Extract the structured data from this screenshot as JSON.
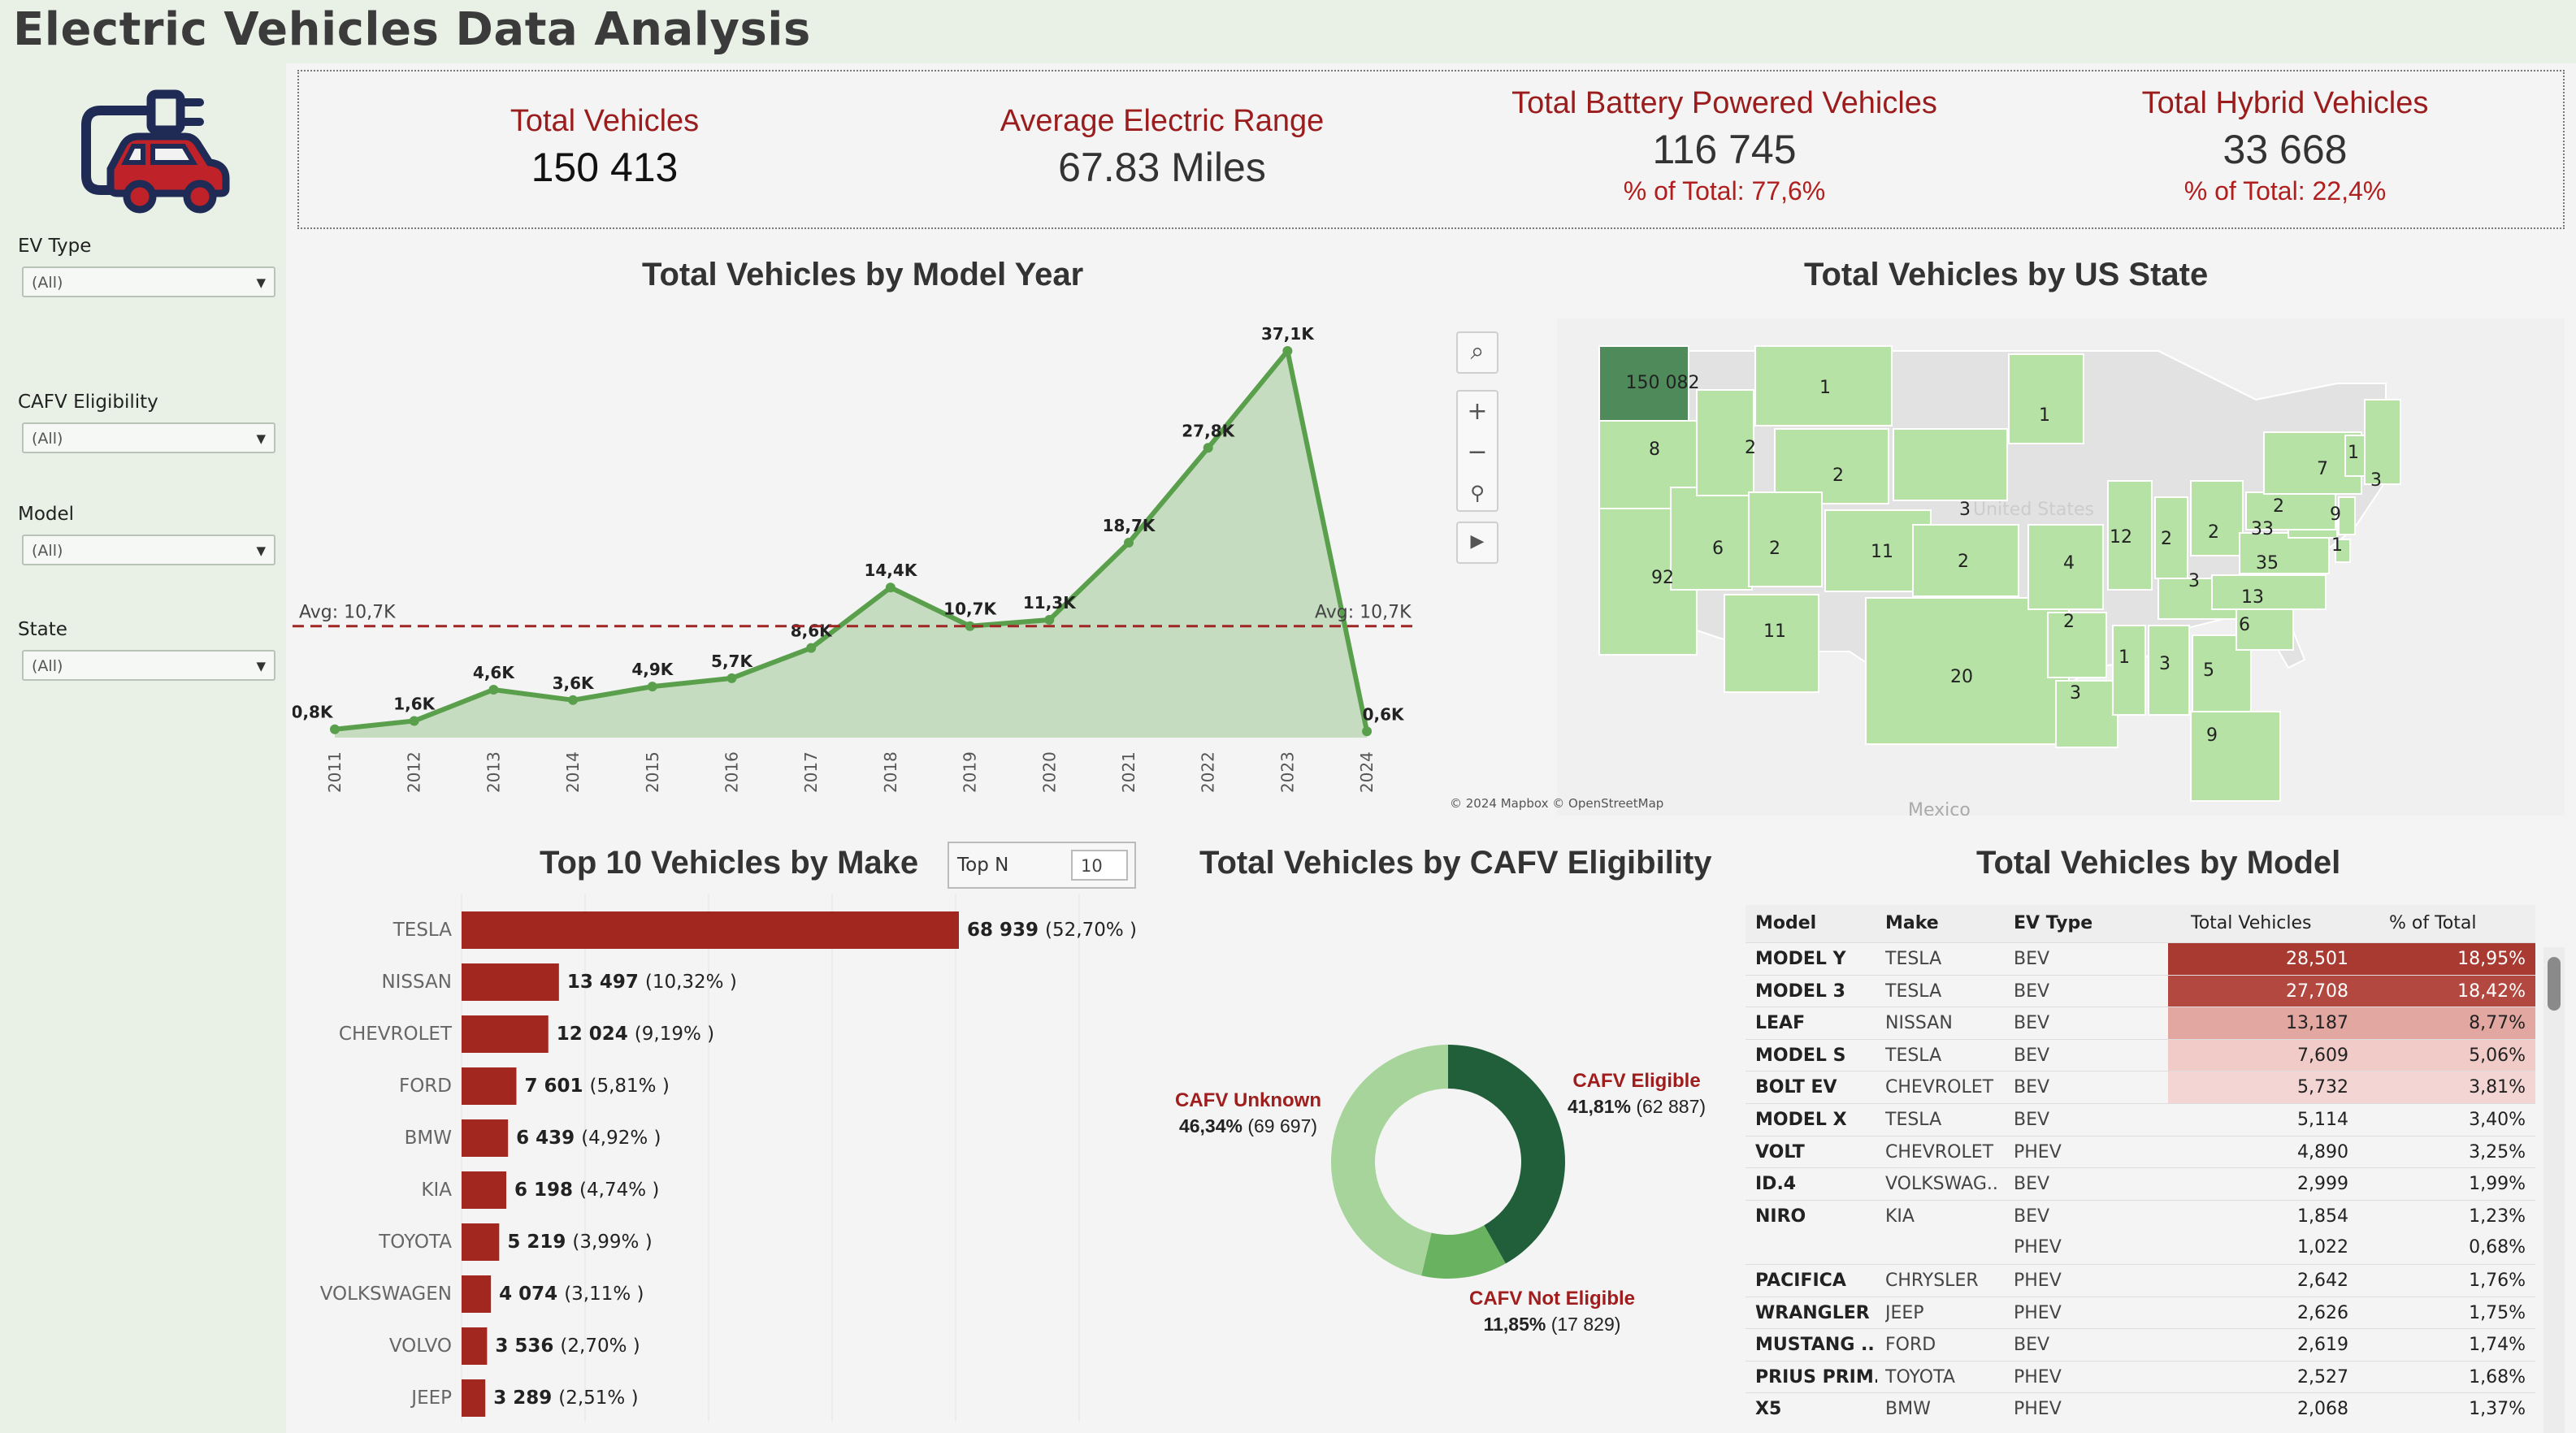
{
  "page": {
    "title": "Electric Vehicles Data Analysis"
  },
  "colors": {
    "accent_red": "#9a1c1c",
    "green_dark": "#215f3a",
    "green_mid": "#69b25f",
    "green_light": "#a6d49a",
    "sidebar_bg": "#e9f1e6"
  },
  "sidebar": {
    "logo_icon": "ev-plug-car-icon",
    "filters": [
      {
        "label": "EV Type",
        "value": "(All)"
      },
      {
        "label": "CAFV Eligibility",
        "value": "(All)"
      },
      {
        "label": "Model",
        "value": "(All)"
      },
      {
        "label": "State",
        "value": "(All)"
      }
    ]
  },
  "kpis": [
    {
      "title": "Total Vehicles",
      "value": "150 413",
      "pct": ""
    },
    {
      "title": "Average Electric Range",
      "value": "67.83 Miles",
      "pct": ""
    },
    {
      "title": "Total Battery Powered Vehicles",
      "value": "116 745",
      "pct": "% of Total: 77,6%"
    },
    {
      "title": "Total Hybrid Vehicles",
      "value": "33 668",
      "pct": "% of Total: 22,4%"
    }
  ],
  "titles": {
    "model_year": "Total Vehicles by Model Year",
    "us_state": "Total Vehicles by US State",
    "make": "Top 10 Vehicles by Make",
    "cafv": "Total Vehicles by CAFV Eligibility",
    "model": "Total Vehicles by Model"
  },
  "map": {
    "credit": "© 2024 Mapbox © OpenStreetMap",
    "country_label": "United States",
    "mexico_label": "Mexico",
    "tools": [
      "search-icon",
      "zoom-in-icon",
      "zoom-out-icon",
      "pin-icon",
      "play-icon"
    ],
    "state_values": [
      {
        "state": "WA",
        "value": "150 082"
      },
      {
        "state": "OR",
        "value": "8"
      },
      {
        "state": "CA",
        "value": "92"
      },
      {
        "state": "NV",
        "value": "6"
      },
      {
        "state": "ID",
        "value": "2"
      },
      {
        "state": "MT",
        "value": "1"
      },
      {
        "state": "WY",
        "value": "2"
      },
      {
        "state": "UT",
        "value": "2"
      },
      {
        "state": "CO",
        "value": "11"
      },
      {
        "state": "AZ",
        "value": "11"
      },
      {
        "state": "SD",
        "value": "3"
      },
      {
        "state": "KS",
        "value": "2"
      },
      {
        "state": "TX",
        "value": "20"
      },
      {
        "state": "MN",
        "value": "1"
      },
      {
        "state": "MO",
        "value": "4"
      },
      {
        "state": "AR",
        "value": "2"
      },
      {
        "state": "LA",
        "value": "3"
      },
      {
        "state": "IL",
        "value": "12"
      },
      {
        "state": "IN",
        "value": "2"
      },
      {
        "state": "OH",
        "value": "2"
      },
      {
        "state": "MS",
        "value": "1"
      },
      {
        "state": "AL",
        "value": "3"
      },
      {
        "state": "GA",
        "value": "5"
      },
      {
        "state": "KY",
        "value": "3"
      },
      {
        "state": "SC",
        "value": "6"
      },
      {
        "state": "NC",
        "value": "13"
      },
      {
        "state": "FL",
        "value": "9"
      },
      {
        "state": "VA",
        "value": "35"
      },
      {
        "state": "MD",
        "value": "33"
      },
      {
        "state": "PA",
        "value": "2"
      },
      {
        "state": "NY",
        "value": "7"
      },
      {
        "state": "NJ",
        "value": "9"
      },
      {
        "state": "DE",
        "value": "1"
      },
      {
        "state": "VT",
        "value": "1"
      },
      {
        "state": "ME",
        "value": "3"
      }
    ]
  },
  "chart_data": [
    {
      "type": "area",
      "title": "Total Vehicles by Model Year",
      "x": [
        "2011",
        "2012",
        "2013",
        "2014",
        "2015",
        "2016",
        "2017",
        "2018",
        "2019",
        "2020",
        "2021",
        "2022",
        "2023",
        "2024"
      ],
      "values": [
        0.8,
        1.6,
        4.6,
        3.6,
        4.9,
        5.7,
        8.6,
        14.4,
        10.7,
        11.3,
        18.7,
        27.8,
        37.1,
        0.6
      ],
      "data_labels": [
        "0,8K",
        "1,6K",
        "4,6K",
        "3,6K",
        "4,9K",
        "5,7K",
        "8,6K",
        "14,4K",
        "10,7K",
        "11,3K",
        "18,7K",
        "27,8K",
        "37,1K",
        "0,6K"
      ],
      "reference_line": {
        "value": 10.7,
        "label": "Avg: 10,7K"
      },
      "ylim": [
        0,
        38.5
      ]
    },
    {
      "type": "bar",
      "title": "Top 10 Vehicles by Make",
      "top_n": {
        "label": "Top N",
        "value": "10"
      },
      "categories": [
        "TESLA",
        "NISSAN",
        "CHEVROLET",
        "FORD",
        "BMW",
        "KIA",
        "TOYOTA",
        "VOLKSWAGEN",
        "VOLVO",
        "JEEP"
      ],
      "values": [
        68939,
        13497,
        12024,
        7601,
        6439,
        6198,
        5219,
        4074,
        3536,
        3289
      ],
      "value_labels": [
        "68 939",
        "13 497",
        "12 024",
        "7 601",
        "6 439",
        "6 198",
        "5 219",
        "4 074",
        "3 536",
        "3 289"
      ],
      "pct_labels": [
        "(52,70% )",
        "(10,32% )",
        "(9,19% )",
        "(5,81% )",
        "(4,92% )",
        "(4,74% )",
        "(3,99% )",
        "(3,11% )",
        "(2,70% )",
        "(2,51% )"
      ]
    },
    {
      "type": "pie",
      "title": "Total Vehicles by CAFV Eligibility",
      "slices": [
        {
          "name": "CAFV Eligible",
          "value": 62887,
          "pct": "41,81%",
          "count": "(62 887)",
          "color": "#215f3a"
        },
        {
          "name": "CAFV Not Eligible",
          "value": 17829,
          "pct": "11,85%",
          "count": "(17 829)",
          "color": "#69b25f"
        },
        {
          "name": "CAFV Unknown",
          "value": 69697,
          "pct": "46,34%",
          "count": "(69 697)",
          "color": "#a6d49a"
        }
      ]
    },
    {
      "type": "table",
      "title": "Total Vehicles by Model",
      "columns": [
        "Model",
        "Make",
        "EV Type",
        "Total Vehicles",
        "% of Total"
      ],
      "rows": [
        {
          "model": "MODEL Y",
          "make": "TESLA",
          "ev": "BEV",
          "total": "28,501",
          "pct": "18,95%",
          "shade": "#a93a32"
        },
        {
          "model": "MODEL 3",
          "make": "TESLA",
          "ev": "BEV",
          "total": "27,708",
          "pct": "18,42%",
          "shade": "#b24840"
        },
        {
          "model": "LEAF",
          "make": "NISSAN",
          "ev": "BEV",
          "total": "13,187",
          "pct": "8,77%",
          "shade": "#e3a7a2"
        },
        {
          "model": "MODEL S",
          "make": "TESLA",
          "ev": "BEV",
          "total": "7,609",
          "pct": "5,06%",
          "shade": "#f0cbc8"
        },
        {
          "model": "BOLT EV",
          "make": "CHEVROLET",
          "ev": "BEV",
          "total": "5,732",
          "pct": "3,81%",
          "shade": "#f3d6d3"
        },
        {
          "model": "MODEL X",
          "make": "TESLA",
          "ev": "BEV",
          "total": "5,114",
          "pct": "3,40%",
          "shade": ""
        },
        {
          "model": "VOLT",
          "make": "CHEVROLET",
          "ev": "PHEV",
          "total": "4,890",
          "pct": "3,25%",
          "shade": ""
        },
        {
          "model": "ID.4",
          "make": "VOLKSWAG..",
          "ev": "BEV",
          "total": "2,999",
          "pct": "1,99%",
          "shade": ""
        },
        {
          "model": "NIRO",
          "make": "KIA",
          "ev": "BEV",
          "total": "1,854",
          "pct": "1,23%",
          "shade": ""
        },
        {
          "model": "",
          "make": "",
          "ev": "PHEV",
          "total": "1,022",
          "pct": "0,68%",
          "shade": ""
        },
        {
          "model": "PACIFICA",
          "make": "CHRYSLER",
          "ev": "PHEV",
          "total": "2,642",
          "pct": "1,76%",
          "shade": ""
        },
        {
          "model": "WRANGLER",
          "make": "JEEP",
          "ev": "PHEV",
          "total": "2,626",
          "pct": "1,75%",
          "shade": ""
        },
        {
          "model": "MUSTANG ..",
          "make": "FORD",
          "ev": "BEV",
          "total": "2,619",
          "pct": "1,74%",
          "shade": ""
        },
        {
          "model": "PRIUS PRIM..",
          "make": "TOYOTA",
          "ev": "PHEV",
          "total": "2,527",
          "pct": "1,68%",
          "shade": ""
        },
        {
          "model": "X5",
          "make": "BMW",
          "ev": "PHEV",
          "total": "2,068",
          "pct": "1,37%",
          "shade": ""
        }
      ]
    }
  ]
}
